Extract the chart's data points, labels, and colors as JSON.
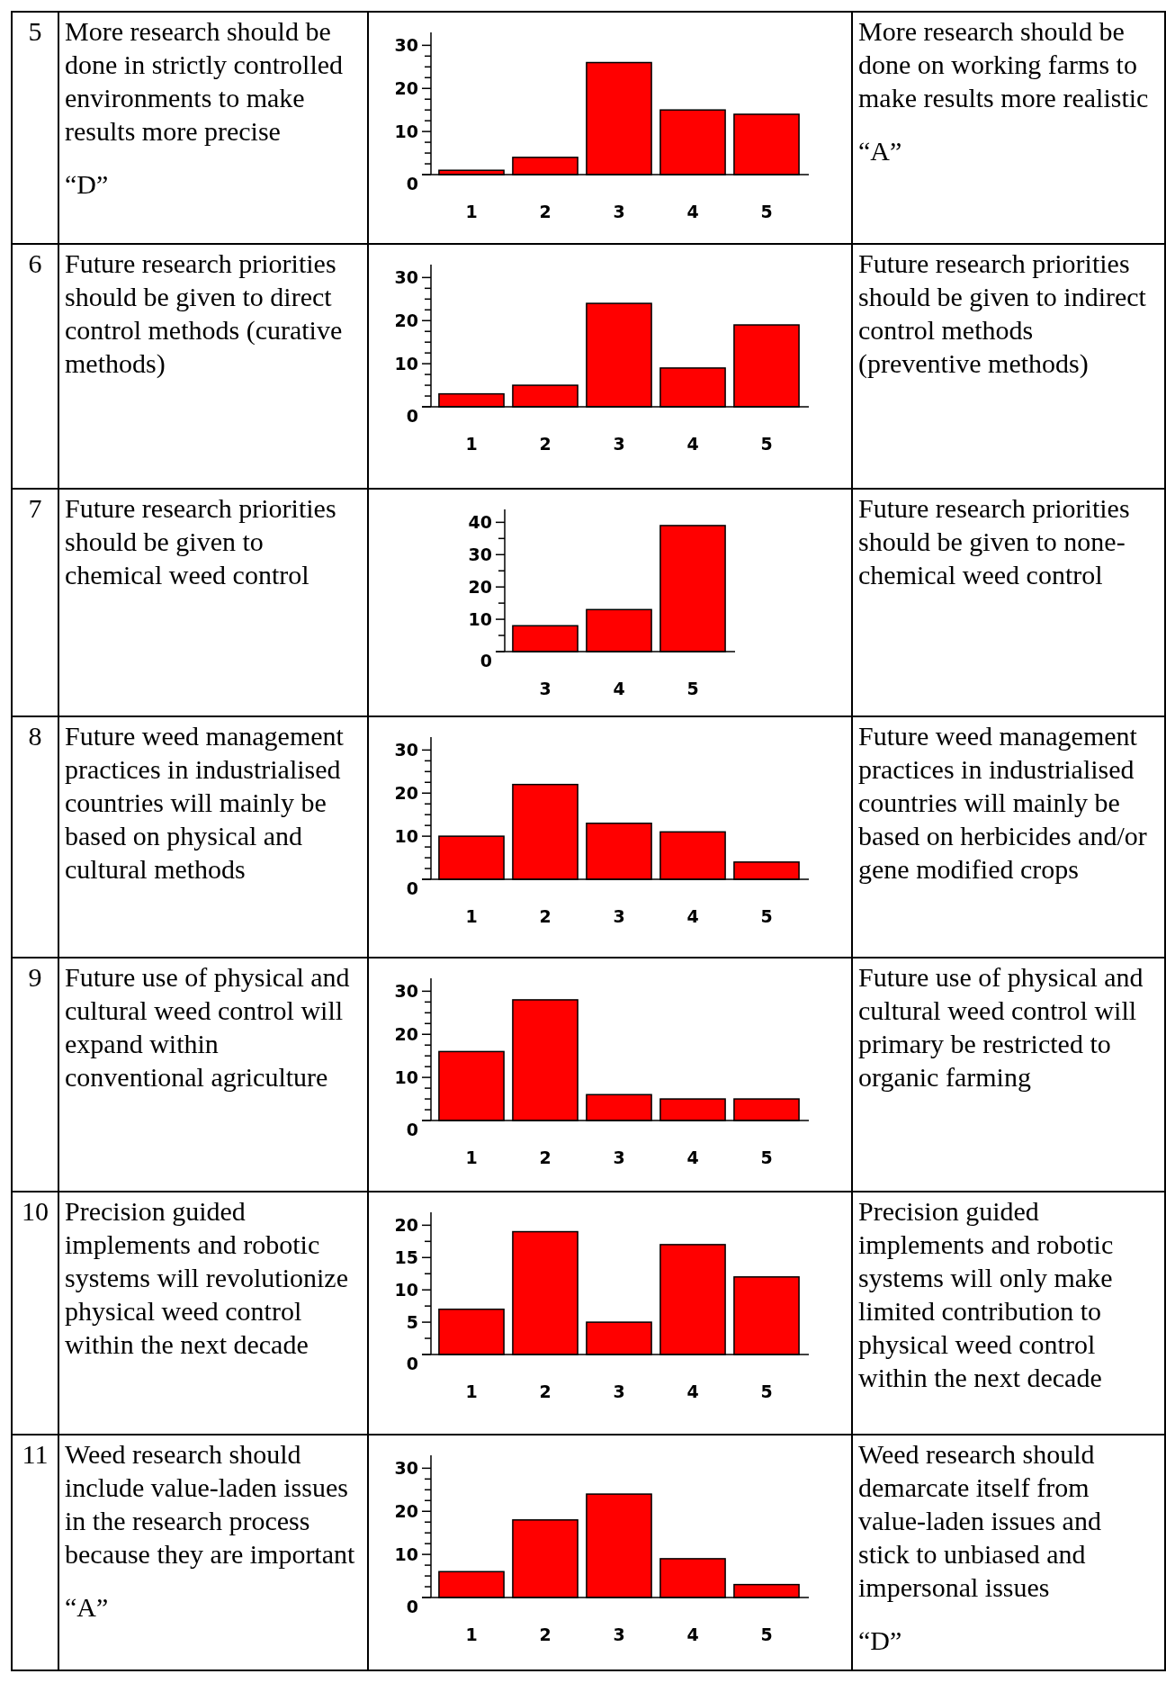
{
  "chart_data": [
    {
      "type": "other",
      "title": "5",
      "annotations": [
        "More research should be done in strictly controlled environments to make results more precise",
        "“D”"
      ]
    },
    {
      "type": "bar",
      "categories": [
        "1",
        "2",
        "3",
        "4",
        "5"
      ],
      "values": [
        1,
        4,
        26,
        15,
        14
      ],
      "color": "#ff0000",
      "ylim": [
        0,
        33
      ],
      "yticks": [
        0,
        {
          "value": 2.5,
          "label": null
        },
        {
          "value": 5,
          "label": null
        },
        {
          "value": 7.5,
          "label": null
        },
        10,
        {
          "value": 12.5,
          "label": null
        },
        {
          "value": 15,
          "label": null
        },
        {
          "value": 17.5,
          "label": null
        },
        20,
        {
          "value": 22.5,
          "label": null
        },
        {
          "value": 25,
          "label": null
        },
        {
          "value": 27.5,
          "label": null
        },
        30
      ]
    },
    {
      "type": "other",
      "annotations": [
        "More research should be done on working farms to make results more realistic",
        "“A”"
      ]
    },
    {
      "type": "other",
      "title": "6",
      "annotations": [
        "Future research priorities should be given to direct control methods (curative methods)"
      ]
    },
    {
      "type": "bar",
      "categories": [
        "1",
        "2",
        "3",
        "4",
        "5"
      ],
      "values": [
        3,
        5,
        24,
        9,
        19
      ],
      "color": "#ff0000",
      "ylim": [
        0,
        33
      ],
      "yticks": [
        0,
        {
          "value": 2.5,
          "label": null
        },
        {
          "value": 5,
          "label": null
        },
        {
          "value": 7.5,
          "label": null
        },
        10,
        {
          "value": 12.5,
          "label": null
        },
        {
          "value": 15,
          "label": null
        },
        {
          "value": 17.5,
          "label": null
        },
        20,
        {
          "value": 22.5,
          "label": null
        },
        {
          "value": 25,
          "label": null
        },
        {
          "value": 27.5,
          "label": null
        },
        30
      ]
    },
    {
      "type": "other",
      "annotations": [
        "Future research priorities should be given to indirect control methods (preventive methods)"
      ]
    },
    {
      "type": "other",
      "title": "7",
      "annotations": [
        "Future research priorities should be given to chemical weed control"
      ]
    },
    {
      "type": "bar",
      "categories": [
        "3",
        "4",
        "5"
      ],
      "values": [
        8,
        13,
        39
      ],
      "color": "#ff0000",
      "ylim": [
        0,
        44
      ],
      "yticks": [
        0,
        {
          "value": 5,
          "label": null
        },
        10,
        {
          "value": 15,
          "label": null
        },
        20,
        {
          "value": 25,
          "label": null
        },
        30,
        {
          "value": 35,
          "label": null
        },
        40
      ]
    },
    {
      "type": "other",
      "annotations": [
        "Future research priorities should be given to none-chemical weed control"
      ]
    },
    {
      "type": "other",
      "title": "8",
      "annotations": [
        "Future weed management practices in industrialised countries will mainly be based on physical and cultural methods"
      ]
    },
    {
      "type": "bar",
      "categories": [
        "1",
        "2",
        "3",
        "4",
        "5"
      ],
      "values": [
        10,
        22,
        13,
        11,
        4
      ],
      "color": "#ff0000",
      "ylim": [
        0,
        33
      ],
      "yticks": [
        0,
        {
          "value": 2.5,
          "label": null
        },
        {
          "value": 5,
          "label": null
        },
        {
          "value": 7.5,
          "label": null
        },
        10,
        {
          "value": 12.5,
          "label": null
        },
        {
          "value": 15,
          "label": null
        },
        {
          "value": 17.5,
          "label": null
        },
        20,
        {
          "value": 22.5,
          "label": null
        },
        {
          "value": 25,
          "label": null
        },
        {
          "value": 27.5,
          "label": null
        },
        30
      ]
    },
    {
      "type": "other",
      "annotations": [
        "Future weed management practices in industrialised countries will mainly be based on herbicides and/or gene modified crops"
      ]
    },
    {
      "type": "other",
      "title": "9",
      "annotations": [
        "Future use of physical and cultural weed control will expand within conventional agriculture"
      ]
    },
    {
      "type": "bar",
      "categories": [
        "1",
        "2",
        "3",
        "4",
        "5"
      ],
      "values": [
        16,
        28,
        6,
        5,
        5
      ],
      "color": "#ff0000",
      "ylim": [
        0,
        33
      ],
      "yticks": [
        0,
        {
          "value": 2.5,
          "label": null
        },
        {
          "value": 5,
          "label": null
        },
        {
          "value": 7.5,
          "label": null
        },
        10,
        {
          "value": 12.5,
          "label": null
        },
        {
          "value": 15,
          "label": null
        },
        {
          "value": 17.5,
          "label": null
        },
        20,
        {
          "value": 22.5,
          "label": null
        },
        {
          "value": 25,
          "label": null
        },
        {
          "value": 27.5,
          "label": null
        },
        30
      ]
    },
    {
      "type": "other",
      "annotations": [
        "Future use of physical and cultural weed control will primary be restricted to organic farming"
      ]
    },
    {
      "type": "other",
      "title": "10",
      "annotations": [
        "Precision guided implements and robotic systems will revolutionize physical weed control within the next decade"
      ]
    },
    {
      "type": "bar",
      "categories": [
        "1",
        "2",
        "3",
        "4",
        "5"
      ],
      "values": [
        7,
        19,
        5,
        17,
        12
      ],
      "color": "#ff0000",
      "ylim": [
        0,
        22
      ],
      "yticks": [
        0,
        {
          "value": 2.5,
          "label": null
        },
        5,
        {
          "value": 7.5,
          "label": null
        },
        10,
        {
          "value": 12.5,
          "label": null
        },
        15,
        {
          "value": 17.5,
          "label": null
        },
        20
      ]
    },
    {
      "type": "other",
      "annotations": [
        "Precision guided implements and robotic systems will only make limited contribution to physical weed control within the next decade"
      ]
    },
    {
      "type": "other",
      "title": "11",
      "annotations": [
        "Weed research should include value-laden issues in the research process because they are important",
        "“A”"
      ]
    },
    {
      "type": "bar",
      "categories": [
        "1",
        "2",
        "3",
        "4",
        "5"
      ],
      "values": [
        6,
        18,
        24,
        9,
        3
      ],
      "color": "#ff0000",
      "ylim": [
        0,
        33
      ],
      "yticks": [
        0,
        {
          "value": 2.5,
          "label": null
        },
        {
          "value": 5,
          "label": null
        },
        {
          "value": 7.5,
          "label": null
        },
        10,
        {
          "value": 12.5,
          "label": null
        },
        {
          "value": 15,
          "label": null
        },
        {
          "value": 17.5,
          "label": null
        },
        20,
        {
          "value": 22.5,
          "label": null
        },
        {
          "value": 25,
          "label": null
        },
        {
          "value": 27.5,
          "label": null
        },
        30
      ]
    },
    {
      "type": "other",
      "annotations": [
        "Weed research should demarcate itself from value-laden issues and stick to unbiased and impersonal issues",
        "“D”"
      ]
    }
  ]
}
